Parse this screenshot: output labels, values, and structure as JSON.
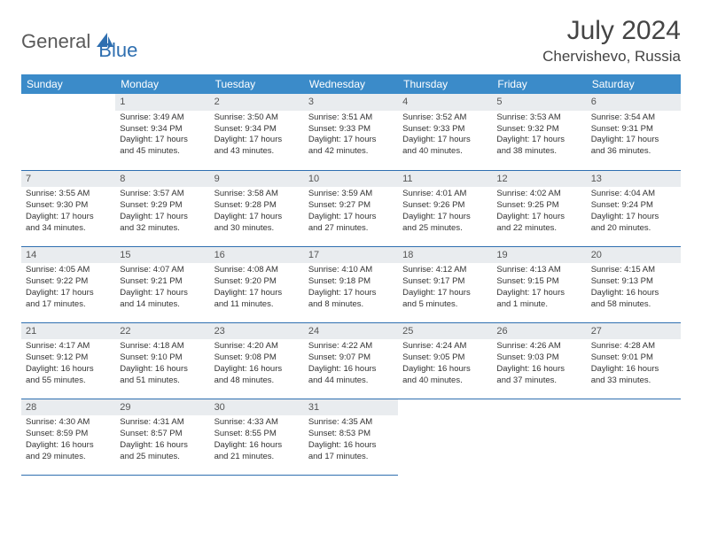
{
  "logo": {
    "part1": "General",
    "part2": "Blue"
  },
  "title": "July 2024",
  "location": "Chervishevo, Russia",
  "colors": {
    "header_bg": "#3b8bc9",
    "header_text": "#ffffff",
    "daynum_bg": "#e9ecef",
    "border": "#2f6fb0",
    "logo_gray": "#5a5a5a",
    "logo_blue": "#2f6fb0"
  },
  "weekdays": [
    "Sunday",
    "Monday",
    "Tuesday",
    "Wednesday",
    "Thursday",
    "Friday",
    "Saturday"
  ],
  "weeks": [
    [
      null,
      {
        "n": "1",
        "l1": "Sunrise: 3:49 AM",
        "l2": "Sunset: 9:34 PM",
        "l3": "Daylight: 17 hours",
        "l4": "and 45 minutes."
      },
      {
        "n": "2",
        "l1": "Sunrise: 3:50 AM",
        "l2": "Sunset: 9:34 PM",
        "l3": "Daylight: 17 hours",
        "l4": "and 43 minutes."
      },
      {
        "n": "3",
        "l1": "Sunrise: 3:51 AM",
        "l2": "Sunset: 9:33 PM",
        "l3": "Daylight: 17 hours",
        "l4": "and 42 minutes."
      },
      {
        "n": "4",
        "l1": "Sunrise: 3:52 AM",
        "l2": "Sunset: 9:33 PM",
        "l3": "Daylight: 17 hours",
        "l4": "and 40 minutes."
      },
      {
        "n": "5",
        "l1": "Sunrise: 3:53 AM",
        "l2": "Sunset: 9:32 PM",
        "l3": "Daylight: 17 hours",
        "l4": "and 38 minutes."
      },
      {
        "n": "6",
        "l1": "Sunrise: 3:54 AM",
        "l2": "Sunset: 9:31 PM",
        "l3": "Daylight: 17 hours",
        "l4": "and 36 minutes."
      }
    ],
    [
      {
        "n": "7",
        "l1": "Sunrise: 3:55 AM",
        "l2": "Sunset: 9:30 PM",
        "l3": "Daylight: 17 hours",
        "l4": "and 34 minutes."
      },
      {
        "n": "8",
        "l1": "Sunrise: 3:57 AM",
        "l2": "Sunset: 9:29 PM",
        "l3": "Daylight: 17 hours",
        "l4": "and 32 minutes."
      },
      {
        "n": "9",
        "l1": "Sunrise: 3:58 AM",
        "l2": "Sunset: 9:28 PM",
        "l3": "Daylight: 17 hours",
        "l4": "and 30 minutes."
      },
      {
        "n": "10",
        "l1": "Sunrise: 3:59 AM",
        "l2": "Sunset: 9:27 PM",
        "l3": "Daylight: 17 hours",
        "l4": "and 27 minutes."
      },
      {
        "n": "11",
        "l1": "Sunrise: 4:01 AM",
        "l2": "Sunset: 9:26 PM",
        "l3": "Daylight: 17 hours",
        "l4": "and 25 minutes."
      },
      {
        "n": "12",
        "l1": "Sunrise: 4:02 AM",
        "l2": "Sunset: 9:25 PM",
        "l3": "Daylight: 17 hours",
        "l4": "and 22 minutes."
      },
      {
        "n": "13",
        "l1": "Sunrise: 4:04 AM",
        "l2": "Sunset: 9:24 PM",
        "l3": "Daylight: 17 hours",
        "l4": "and 20 minutes."
      }
    ],
    [
      {
        "n": "14",
        "l1": "Sunrise: 4:05 AM",
        "l2": "Sunset: 9:22 PM",
        "l3": "Daylight: 17 hours",
        "l4": "and 17 minutes."
      },
      {
        "n": "15",
        "l1": "Sunrise: 4:07 AM",
        "l2": "Sunset: 9:21 PM",
        "l3": "Daylight: 17 hours",
        "l4": "and 14 minutes."
      },
      {
        "n": "16",
        "l1": "Sunrise: 4:08 AM",
        "l2": "Sunset: 9:20 PM",
        "l3": "Daylight: 17 hours",
        "l4": "and 11 minutes."
      },
      {
        "n": "17",
        "l1": "Sunrise: 4:10 AM",
        "l2": "Sunset: 9:18 PM",
        "l3": "Daylight: 17 hours",
        "l4": "and 8 minutes."
      },
      {
        "n": "18",
        "l1": "Sunrise: 4:12 AM",
        "l2": "Sunset: 9:17 PM",
        "l3": "Daylight: 17 hours",
        "l4": "and 5 minutes."
      },
      {
        "n": "19",
        "l1": "Sunrise: 4:13 AM",
        "l2": "Sunset: 9:15 PM",
        "l3": "Daylight: 17 hours",
        "l4": "and 1 minute."
      },
      {
        "n": "20",
        "l1": "Sunrise: 4:15 AM",
        "l2": "Sunset: 9:13 PM",
        "l3": "Daylight: 16 hours",
        "l4": "and 58 minutes."
      }
    ],
    [
      {
        "n": "21",
        "l1": "Sunrise: 4:17 AM",
        "l2": "Sunset: 9:12 PM",
        "l3": "Daylight: 16 hours",
        "l4": "and 55 minutes."
      },
      {
        "n": "22",
        "l1": "Sunrise: 4:18 AM",
        "l2": "Sunset: 9:10 PM",
        "l3": "Daylight: 16 hours",
        "l4": "and 51 minutes."
      },
      {
        "n": "23",
        "l1": "Sunrise: 4:20 AM",
        "l2": "Sunset: 9:08 PM",
        "l3": "Daylight: 16 hours",
        "l4": "and 48 minutes."
      },
      {
        "n": "24",
        "l1": "Sunrise: 4:22 AM",
        "l2": "Sunset: 9:07 PM",
        "l3": "Daylight: 16 hours",
        "l4": "and 44 minutes."
      },
      {
        "n": "25",
        "l1": "Sunrise: 4:24 AM",
        "l2": "Sunset: 9:05 PM",
        "l3": "Daylight: 16 hours",
        "l4": "and 40 minutes."
      },
      {
        "n": "26",
        "l1": "Sunrise: 4:26 AM",
        "l2": "Sunset: 9:03 PM",
        "l3": "Daylight: 16 hours",
        "l4": "and 37 minutes."
      },
      {
        "n": "27",
        "l1": "Sunrise: 4:28 AM",
        "l2": "Sunset: 9:01 PM",
        "l3": "Daylight: 16 hours",
        "l4": "and 33 minutes."
      }
    ],
    [
      {
        "n": "28",
        "l1": "Sunrise: 4:30 AM",
        "l2": "Sunset: 8:59 PM",
        "l3": "Daylight: 16 hours",
        "l4": "and 29 minutes."
      },
      {
        "n": "29",
        "l1": "Sunrise: 4:31 AM",
        "l2": "Sunset: 8:57 PM",
        "l3": "Daylight: 16 hours",
        "l4": "and 25 minutes."
      },
      {
        "n": "30",
        "l1": "Sunrise: 4:33 AM",
        "l2": "Sunset: 8:55 PM",
        "l3": "Daylight: 16 hours",
        "l4": "and 21 minutes."
      },
      {
        "n": "31",
        "l1": "Sunrise: 4:35 AM",
        "l2": "Sunset: 8:53 PM",
        "l3": "Daylight: 16 hours",
        "l4": "and 17 minutes."
      },
      null,
      null,
      null
    ]
  ]
}
